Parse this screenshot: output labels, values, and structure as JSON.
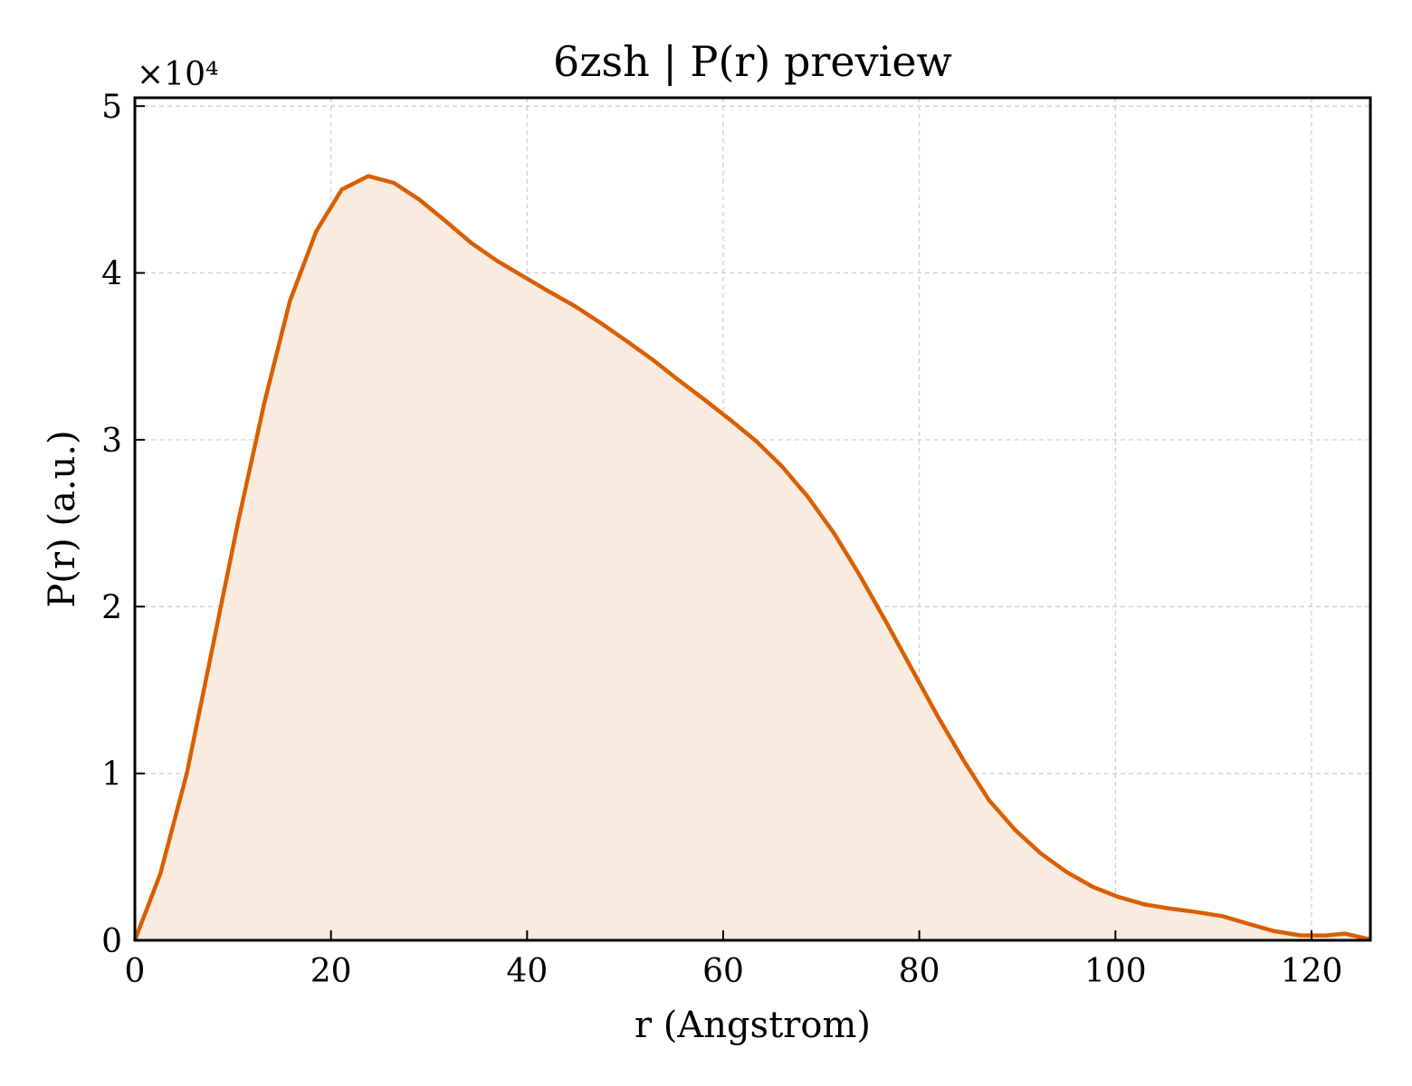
{
  "chart_data": {
    "type": "area",
    "title": "6zsh | P(r) preview",
    "xlabel": "r (Angstrom)",
    "ylabel": "P(r) (a.u.)",
    "y_offset_label": "×10⁴",
    "xlim": [
      0,
      126
    ],
    "ylim": [
      0,
      5.05
    ],
    "y_multiplier": 10000,
    "x_ticks": [
      0,
      20,
      40,
      60,
      80,
      100,
      120
    ],
    "y_ticks": [
      0,
      1,
      2,
      3,
      4,
      5
    ],
    "x_tick_labels": [
      "0",
      "20",
      "40",
      "60",
      "80",
      "100",
      "120"
    ],
    "y_tick_labels": [
      "0",
      "1",
      "2",
      "3",
      "4",
      "5"
    ],
    "grid": true,
    "line_color": "#d95f02",
    "fill_color": "#f9ebdf",
    "series": [
      {
        "x": [
          0,
          2.6,
          5.3,
          7.9,
          10.5,
          13.2,
          15.8,
          18.5,
          21.1,
          23.8,
          26.4,
          29.0,
          31.7,
          34.3,
          37.0,
          39.6,
          42.2,
          44.9,
          47.5,
          50.2,
          52.8,
          55.4,
          58.1,
          60.7,
          63.4,
          66.0,
          68.6,
          71.3,
          73.9,
          76.6,
          79.2,
          81.8,
          84.5,
          87.1,
          89.8,
          92.4,
          95.0,
          97.7,
          100.3,
          103.0,
          105.6,
          108.2,
          110.9,
          113.5,
          116.2,
          118.8,
          121.4,
          123.4,
          126.0
        ],
        "y": [
          0,
          0.4,
          1.0,
          1.75,
          2.5,
          3.22,
          3.83,
          4.25,
          4.5,
          4.58,
          4.54,
          4.44,
          4.31,
          4.18,
          4.07,
          3.98,
          3.89,
          3.8,
          3.7,
          3.59,
          3.48,
          3.36,
          3.24,
          3.12,
          2.99,
          2.84,
          2.66,
          2.44,
          2.19,
          1.91,
          1.63,
          1.35,
          1.08,
          0.84,
          0.66,
          0.52,
          0.41,
          0.32,
          0.26,
          0.215,
          0.19,
          0.17,
          0.145,
          0.1,
          0.055,
          0.03,
          0.028,
          0.04,
          0.005
        ]
      }
    ]
  }
}
